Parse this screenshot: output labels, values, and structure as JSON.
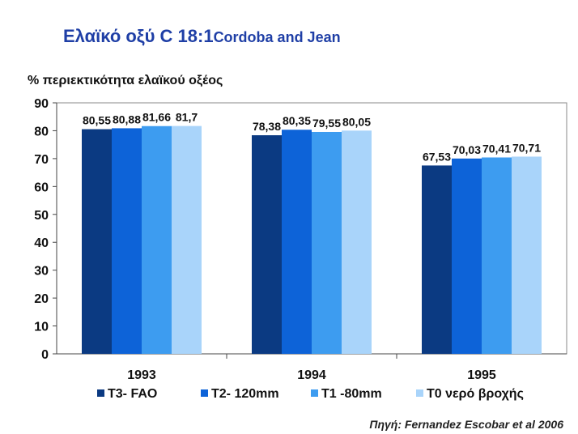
{
  "title": {
    "main": "Ελαϊκό οξύ C 18:1",
    "sub": "Cordoba and Jean"
  },
  "source": "Πηγή: Fernandez Escobar et al 2006",
  "chart_data": {
    "type": "bar",
    "ylabel": "% περιεκτικότητα ελαϊκού οξέος",
    "xlabel": "",
    "ylim": [
      0,
      90
    ],
    "yticks": [
      0,
      10,
      20,
      30,
      40,
      50,
      60,
      70,
      80,
      90
    ],
    "categories": [
      "1993",
      "1994",
      "1995"
    ],
    "series": [
      {
        "name": "T3- FAO",
        "color": "#0b3a82",
        "values": [
          80.55,
          78.38,
          67.53
        ],
        "labels": [
          "80,55",
          "78,38",
          "67,53"
        ]
      },
      {
        "name": "T2- 120mm",
        "color": "#0d63d8",
        "values": [
          80.88,
          80.35,
          70.03
        ],
        "labels": [
          "80,88",
          "80,35",
          "70,03"
        ]
      },
      {
        "name": "T1 -80mm",
        "color": "#3d9cf0",
        "values": [
          81.66,
          79.55,
          70.41
        ],
        "labels": [
          "81,66",
          "79,55",
          "70,41"
        ]
      },
      {
        "name": "T0 νερό βροχής",
        "color": "#a9d4fa",
        "values": [
          81.7,
          80.05,
          70.71
        ],
        "labels": [
          "81,7",
          "80,05",
          "70,71"
        ]
      }
    ],
    "grid": false,
    "legend_position": "bottom"
  }
}
